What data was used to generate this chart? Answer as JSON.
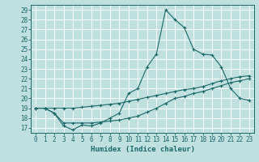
{
  "title": "",
  "xlabel": "Humidex (Indice chaleur)",
  "bg_color": "#c0e0e0",
  "grid_color": "#ffffff",
  "line_color": "#1a6868",
  "xlim": [
    -0.5,
    23.5
  ],
  "ylim": [
    16.5,
    29.5
  ],
  "yticks": [
    17,
    18,
    19,
    20,
    21,
    22,
    23,
    24,
    25,
    26,
    27,
    28,
    29
  ],
  "xticks": [
    0,
    1,
    2,
    3,
    4,
    5,
    6,
    7,
    8,
    9,
    10,
    11,
    12,
    13,
    14,
    15,
    16,
    17,
    18,
    19,
    20,
    21,
    22,
    23
  ],
  "line1_x": [
    0,
    1,
    2,
    3,
    4,
    5,
    6,
    7,
    8,
    9,
    10,
    11,
    12,
    13,
    14,
    15,
    16,
    17,
    18,
    19,
    20,
    21,
    22,
    23
  ],
  "line1_y": [
    19.0,
    19.0,
    18.5,
    17.2,
    16.8,
    17.3,
    17.2,
    17.5,
    18.0,
    18.5,
    20.5,
    21.0,
    23.2,
    24.5,
    29.0,
    28.0,
    27.2,
    25.0,
    24.5,
    24.4,
    23.2,
    21.0,
    20.0,
    19.8
  ],
  "line2_x": [
    0,
    1,
    2,
    3,
    4,
    5,
    6,
    7,
    8,
    9,
    10,
    11,
    12,
    13,
    14,
    15,
    16,
    17,
    18,
    19,
    20,
    21,
    22,
    23
  ],
  "line2_y": [
    19.0,
    19.0,
    19.0,
    19.0,
    19.0,
    19.1,
    19.2,
    19.3,
    19.4,
    19.5,
    19.7,
    19.9,
    20.1,
    20.3,
    20.5,
    20.7,
    20.9,
    21.0,
    21.2,
    21.5,
    21.8,
    22.0,
    22.2,
    22.3
  ],
  "line3_x": [
    0,
    1,
    2,
    3,
    4,
    5,
    6,
    7,
    8,
    9,
    10,
    11,
    12,
    13,
    14,
    15,
    16,
    17,
    18,
    19,
    20,
    21,
    22,
    23
  ],
  "line3_y": [
    19.0,
    19.0,
    18.5,
    17.5,
    17.5,
    17.5,
    17.5,
    17.6,
    17.7,
    17.8,
    18.0,
    18.2,
    18.6,
    19.0,
    19.5,
    20.0,
    20.2,
    20.5,
    20.7,
    21.0,
    21.3,
    21.6,
    21.8,
    22.0
  ]
}
